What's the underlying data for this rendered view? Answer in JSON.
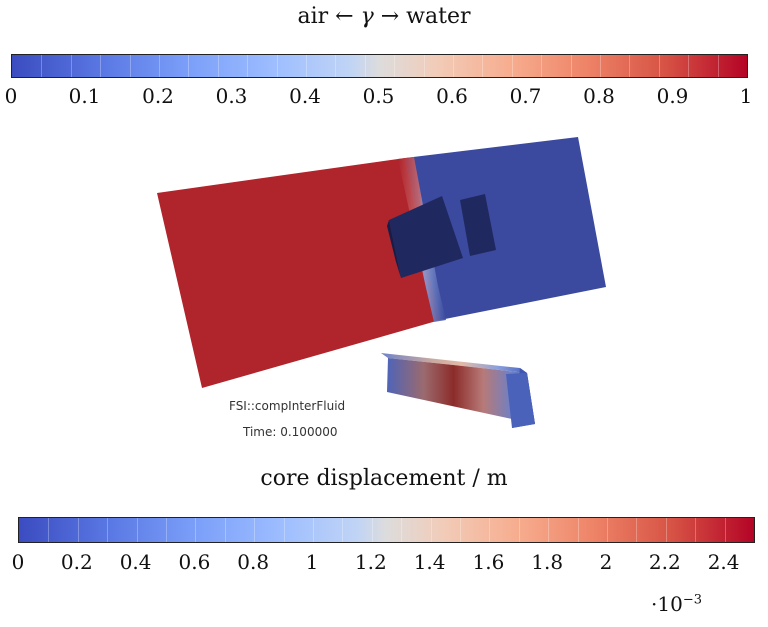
{
  "top_colorbar": {
    "title_prefix": "air ← ",
    "title_symbol": "γ",
    "title_suffix": " → water",
    "ticks": [
      "0",
      "0.1",
      "0.2",
      "0.3",
      "0.4",
      "0.5",
      "0.6",
      "0.7",
      "0.8",
      "0.9",
      "1"
    ],
    "range": [
      0,
      1
    ],
    "colormap": "coolwarm"
  },
  "render_view": {
    "solver_label": "FSI::compInterFluid",
    "time_label": "Time: 0.100000",
    "colors": {
      "water": "#b0242b",
      "air": "#3b4a9e",
      "obstacle": "#1f2960"
    }
  },
  "bottom_colorbar": {
    "title": "core displacement / m",
    "ticks": [
      "0",
      "0.2",
      "0.4",
      "0.6",
      "0.8",
      "1",
      "1.2",
      "1.4",
      "1.6",
      "1.8",
      "2",
      "2.2",
      "2.4"
    ],
    "range": [
      0,
      2.5
    ],
    "scale_base": "·10",
    "scale_exponent": "−3",
    "colormap": "coolwarm"
  }
}
